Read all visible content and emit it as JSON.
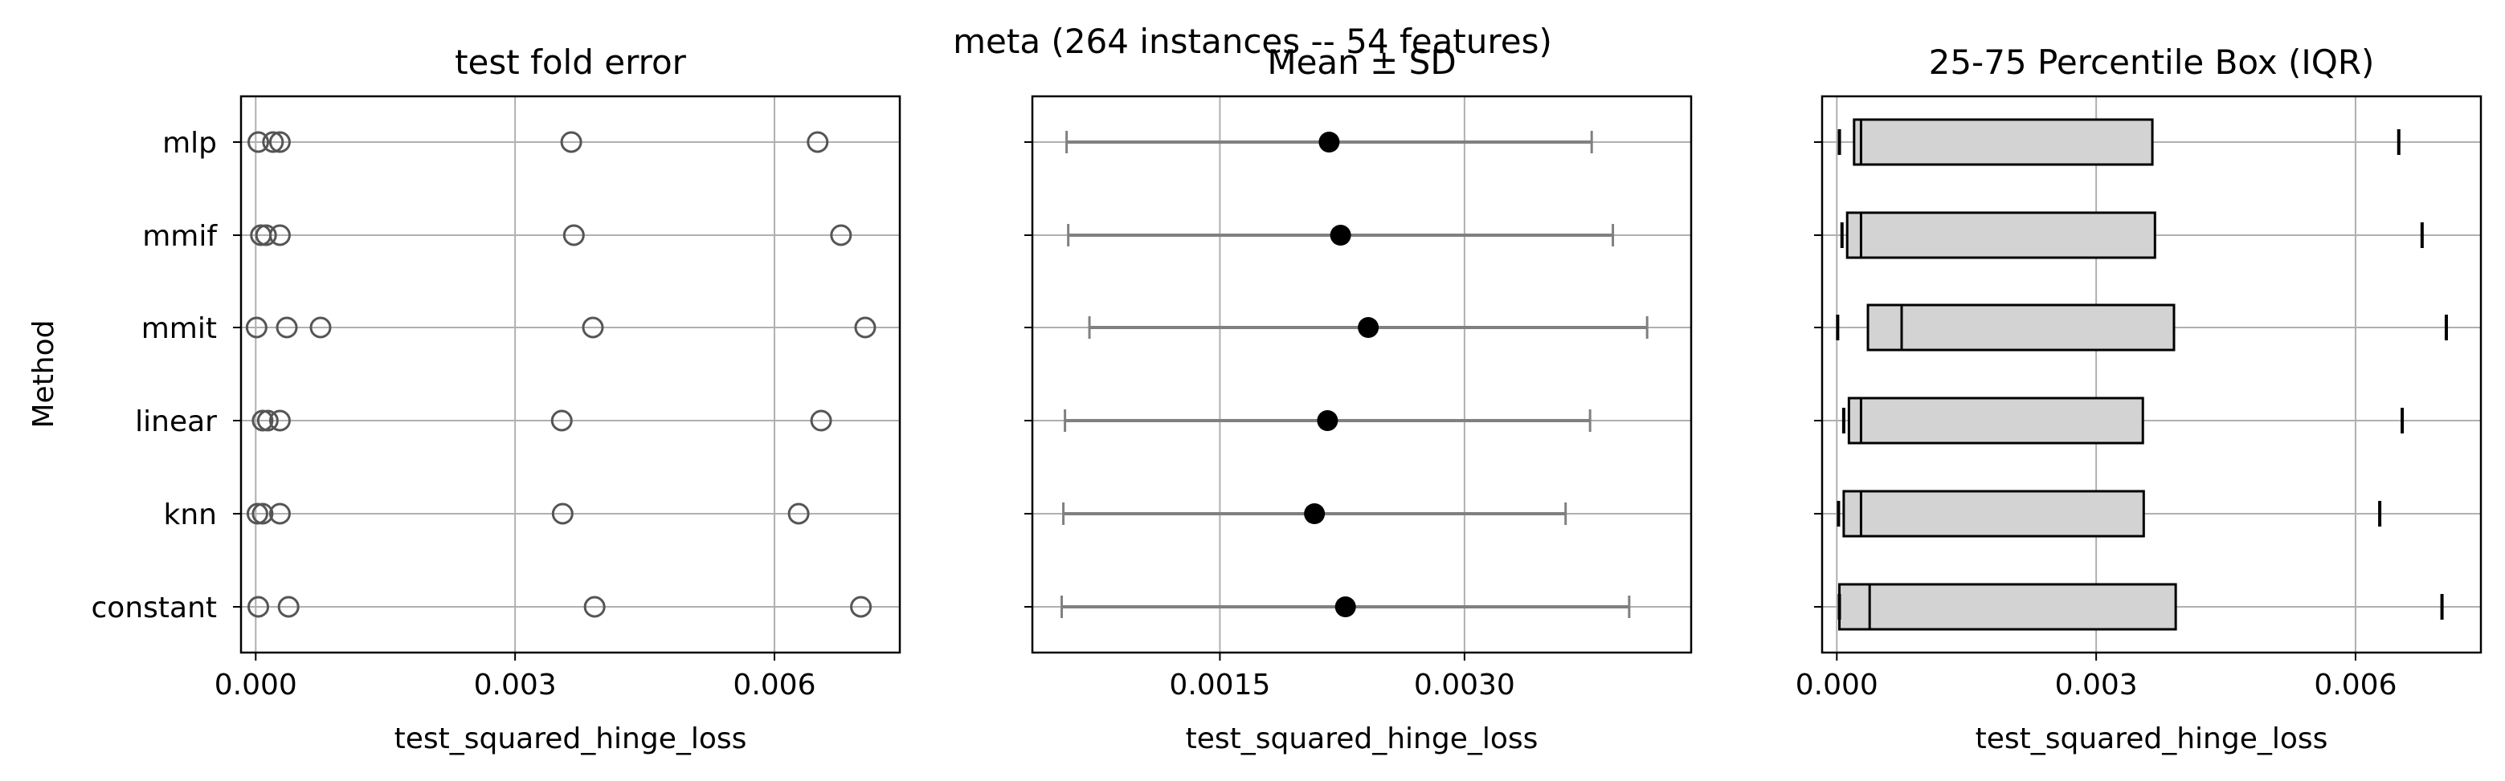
{
  "suptitle": "meta (264 instances -- 54 features)",
  "chart_data": [
    {
      "id": "points",
      "type": "scatter",
      "title": "test fold error",
      "xlabel": "test_squared_hinge_loss",
      "ylabel": "Method",
      "categories": [
        "mlp",
        "mmif",
        "mmit",
        "linear",
        "knn",
        "constant"
      ],
      "xlim": [
        -0.00017,
        0.00745
      ],
      "xticks": [
        0.0,
        0.003,
        0.006
      ],
      "xtick_labels": [
        "0.000",
        "0.003",
        "0.006"
      ],
      "grid": true,
      "marker": "open-circle",
      "marker_color": "#555555",
      "points": {
        "mlp": [
          3e-05,
          0.0002,
          0.00028,
          0.00365,
          0.0065
        ],
        "mmif": [
          6e-05,
          0.00012,
          0.00028,
          0.00368,
          0.00677
        ],
        "mmit": [
          1e-05,
          0.00036,
          0.00075,
          0.0039,
          0.00705
        ],
        "linear": [
          8e-05,
          0.00014,
          0.00028,
          0.00354,
          0.00654
        ],
        "knn": [
          2e-05,
          8e-05,
          0.00028,
          0.00355,
          0.00628
        ],
        "constant": [
          3e-05,
          0.00038,
          0.00392,
          0.007
        ]
      }
    },
    {
      "id": "meansd",
      "type": "errorbar",
      "title": "Mean ± SD",
      "xlabel": "test_squared_hinge_loss",
      "categories": [
        "mlp",
        "mmif",
        "mmit",
        "linear",
        "knn",
        "constant"
      ],
      "xlim": [
        0.00035,
        0.00439
      ],
      "xticks": [
        0.0015,
        0.003
      ],
      "xtick_labels": [
        "0.0015",
        "0.0030"
      ],
      "grid": true,
      "mean_color": "#000000",
      "bar_color": "#808080",
      "series": [
        {
          "method": "mlp",
          "mean": 0.00217,
          "sd": 0.00161
        },
        {
          "method": "mmif",
          "mean": 0.00224,
          "sd": 0.00167
        },
        {
          "method": "mmit",
          "mean": 0.00241,
          "sd": 0.00171
        },
        {
          "method": "linear",
          "mean": 0.00216,
          "sd": 0.00161
        },
        {
          "method": "knn",
          "mean": 0.00208,
          "sd": 0.00154
        },
        {
          "method": "constant",
          "mean": 0.00227,
          "sd": 0.00174
        }
      ]
    },
    {
      "id": "iqr",
      "type": "box",
      "title": "25-75 Percentile Box (IQR)",
      "xlabel": "test_squared_hinge_loss",
      "categories": [
        "mlp",
        "mmif",
        "mmit",
        "linear",
        "knn",
        "constant"
      ],
      "xlim": [
        -0.00017,
        0.00745
      ],
      "xticks": [
        0.0,
        0.003,
        0.006
      ],
      "xtick_labels": [
        "0.000",
        "0.003",
        "0.006"
      ],
      "grid": true,
      "box_fill": "#d3d3d3",
      "series": [
        {
          "method": "mlp",
          "min": 3e-05,
          "q1": 0.0002,
          "median": 0.00028,
          "q3": 0.00365,
          "max": 0.0065
        },
        {
          "method": "mmif",
          "min": 6e-05,
          "q1": 0.00012,
          "median": 0.00028,
          "q3": 0.00368,
          "max": 0.00677
        },
        {
          "method": "mmit",
          "min": 1e-05,
          "q1": 0.00036,
          "median": 0.00075,
          "q3": 0.0039,
          "max": 0.00705
        },
        {
          "method": "linear",
          "min": 8e-05,
          "q1": 0.00014,
          "median": 0.00028,
          "q3": 0.00354,
          "max": 0.00654
        },
        {
          "method": "knn",
          "min": 2e-05,
          "q1": 8e-05,
          "median": 0.00028,
          "q3": 0.00355,
          "max": 0.00628
        },
        {
          "method": "constant",
          "min": 3e-05,
          "q1": 3e-05,
          "median": 0.00038,
          "q3": 0.00392,
          "max": 0.007
        }
      ]
    }
  ]
}
